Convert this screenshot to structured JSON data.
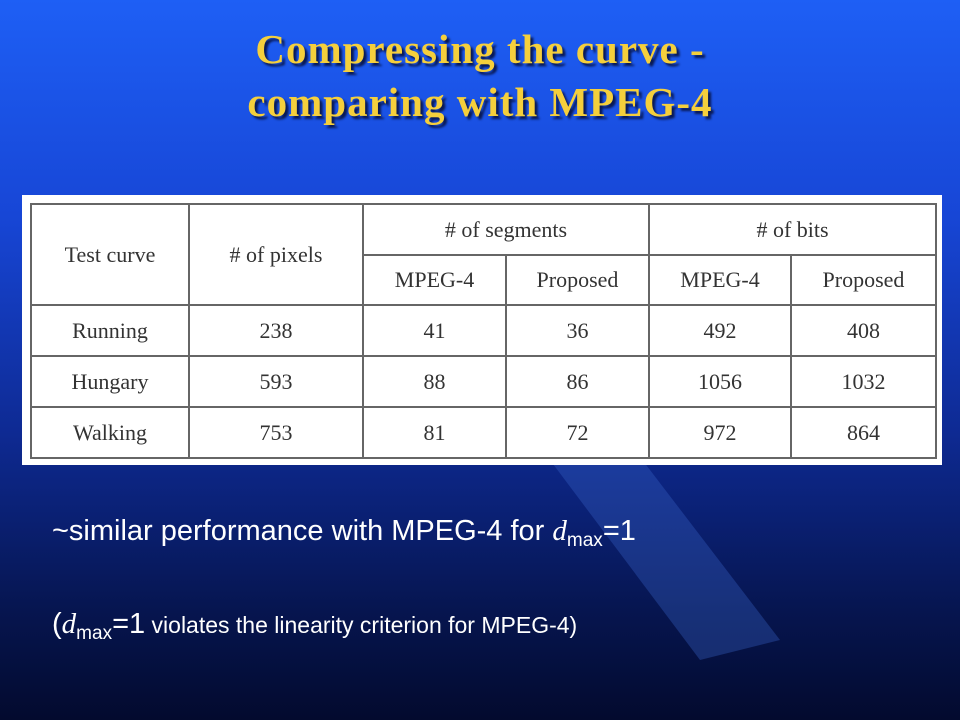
{
  "title": [
    "Compressing the curve -",
    "comparing with MPEG-4"
  ],
  "table": {
    "header": {
      "test_curve": "Test curve",
      "pixels": "# of pixels",
      "segments": "# of segments",
      "bits": "# of bits",
      "sub": [
        "MPEG-4",
        "Proposed",
        "MPEG-4",
        "Proposed"
      ]
    },
    "rows": [
      [
        "Running",
        238,
        41,
        36,
        492,
        408
      ],
      [
        "Hungary",
        593,
        88,
        86,
        1056,
        1032
      ],
      [
        "Walking",
        753,
        81,
        72,
        972,
        864
      ]
    ]
  },
  "notes": [
    [
      "~similar performance with MPEG-4 for ",
      "d",
      "max",
      "=1"
    ],
    [
      "(",
      "d",
      "max",
      "=1",
      " violates the linearity criterion for MPEG-4)"
    ]
  ]
}
